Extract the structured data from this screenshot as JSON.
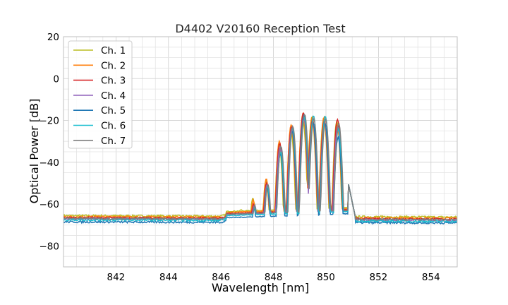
{
  "chart_data": {
    "type": "line",
    "title": "D4402 V20160 Reception Test",
    "xlabel": "Wavelength [nm]",
    "ylabel": "Optical Power [dB]",
    "xlim": [
      840,
      855
    ],
    "ylim": [
      -90,
      20
    ],
    "xticks": [
      842,
      844,
      846,
      848,
      850,
      852,
      854
    ],
    "yticks": [
      20,
      0,
      -20,
      -40,
      -60,
      -80
    ],
    "grid": true,
    "grid_minor": true,
    "legend_position": "top-left",
    "series": [
      {
        "name": "Ch. 1",
        "color": "#bcbd22",
        "baseline_left": -65.5,
        "baseline_right": -66.2,
        "x": [
          840,
          842,
          844,
          846,
          846.6,
          847.3,
          847.9,
          848.3,
          848.9,
          849.4,
          849.9,
          850.5,
          850.9,
          852,
          855
        ],
        "y": [
          -65.5,
          -65.2,
          -64.9,
          -64.6,
          -63.0,
          -57.0,
          -49.0,
          -32.0,
          -25.0,
          -19.5,
          -19.0,
          -20.5,
          -64.5,
          -65.0,
          -66.2
        ]
      },
      {
        "name": "Ch. 2",
        "color": "#ff7f0e",
        "baseline_left": -66.0,
        "baseline_right": -66.8,
        "x": [
          840,
          842,
          844,
          846,
          846.6,
          847.3,
          847.9,
          848.3,
          848.9,
          849.4,
          849.9,
          850.5,
          850.9,
          852,
          855
        ],
        "y": [
          -66.0,
          -65.8,
          -65.6,
          -65.4,
          -64.0,
          -58.0,
          -48.0,
          -30.0,
          -22.0,
          -16.5,
          -18.5,
          -22.0,
          -65.0,
          -65.6,
          -66.8
        ]
      },
      {
        "name": "Ch. 3",
        "color": "#d62728",
        "baseline_left": -66.5,
        "baseline_right": -67.2,
        "x": [
          840,
          842,
          844,
          846,
          846.6,
          847.3,
          847.9,
          848.3,
          848.9,
          849.4,
          849.9,
          850.5,
          850.9,
          852,
          855
        ],
        "y": [
          -66.5,
          -66.4,
          -66.2,
          -66.0,
          -65.0,
          -60.0,
          -50.0,
          -31.0,
          -23.0,
          -16.3,
          -20.0,
          -19.5,
          -65.5,
          -66.2,
          -67.2
        ]
      },
      {
        "name": "Ch. 4",
        "color": "#9467bd",
        "baseline_left": -67.0,
        "baseline_right": -67.8,
        "x": [
          840,
          842,
          844,
          846,
          846.6,
          847.3,
          847.9,
          848.3,
          848.9,
          849.4,
          849.9,
          850.5,
          850.9,
          852,
          855
        ],
        "y": [
          -67.0,
          -66.9,
          -66.7,
          -66.5,
          -65.5,
          -61.0,
          -51.0,
          -33.0,
          -24.0,
          -18.0,
          -21.0,
          -23.0,
          -66.0,
          -66.8,
          -67.8
        ]
      },
      {
        "name": "Ch. 5",
        "color": "#1f77b4",
        "baseline_left": -68.5,
        "baseline_right": -69.0,
        "x": [
          840,
          842,
          844,
          846,
          846.6,
          847.3,
          847.9,
          848.3,
          848.9,
          849.4,
          849.9,
          850.5,
          850.9,
          852,
          855
        ],
        "y": [
          -68.5,
          -68.3,
          -68.0,
          -67.8,
          -67.0,
          -62.0,
          -52.0,
          -36.0,
          -25.0,
          -17.5,
          -21.5,
          -28.0,
          -67.5,
          -68.2,
          -69.0
        ]
      },
      {
        "name": "Ch. 6",
        "color": "#17becf",
        "baseline_left": -67.5,
        "baseline_right": -68.3,
        "x": [
          840,
          842,
          844,
          846,
          846.6,
          847.3,
          847.9,
          848.3,
          848.9,
          849.4,
          849.9,
          850.5,
          850.9,
          852,
          855
        ],
        "y": [
          -67.5,
          -67.4,
          -67.2,
          -67.0,
          -66.0,
          -61.5,
          -51.5,
          -35.0,
          -23.5,
          -18.5,
          -18.0,
          -24.0,
          -66.5,
          -67.3,
          -68.3
        ]
      },
      {
        "name": "Ch. 7",
        "color": "#7f7f7f",
        "baseline_left": -66.8,
        "baseline_right": -67.5,
        "x": [
          840,
          842,
          844,
          846,
          846.6,
          847.3,
          847.9,
          848.3,
          848.9,
          849.4,
          849.9,
          850.5,
          850.9,
          852,
          855
        ],
        "y": [
          -66.8,
          -66.6,
          -66.4,
          -66.2,
          -65.2,
          -60.5,
          -50.5,
          -32.5,
          -23.0,
          -17.0,
          -19.5,
          -21.5,
          -65.8,
          -66.6,
          -67.5
        ]
      }
    ],
    "peaks_nm": [
      846.8,
      847.25,
      847.75,
      848.25,
      848.7,
      849.15,
      849.5,
      849.95,
      850.45
    ],
    "dips_nm": [
      847.0,
      847.5,
      848.0,
      848.5,
      848.95,
      849.3,
      849.72,
      850.2
    ]
  }
}
